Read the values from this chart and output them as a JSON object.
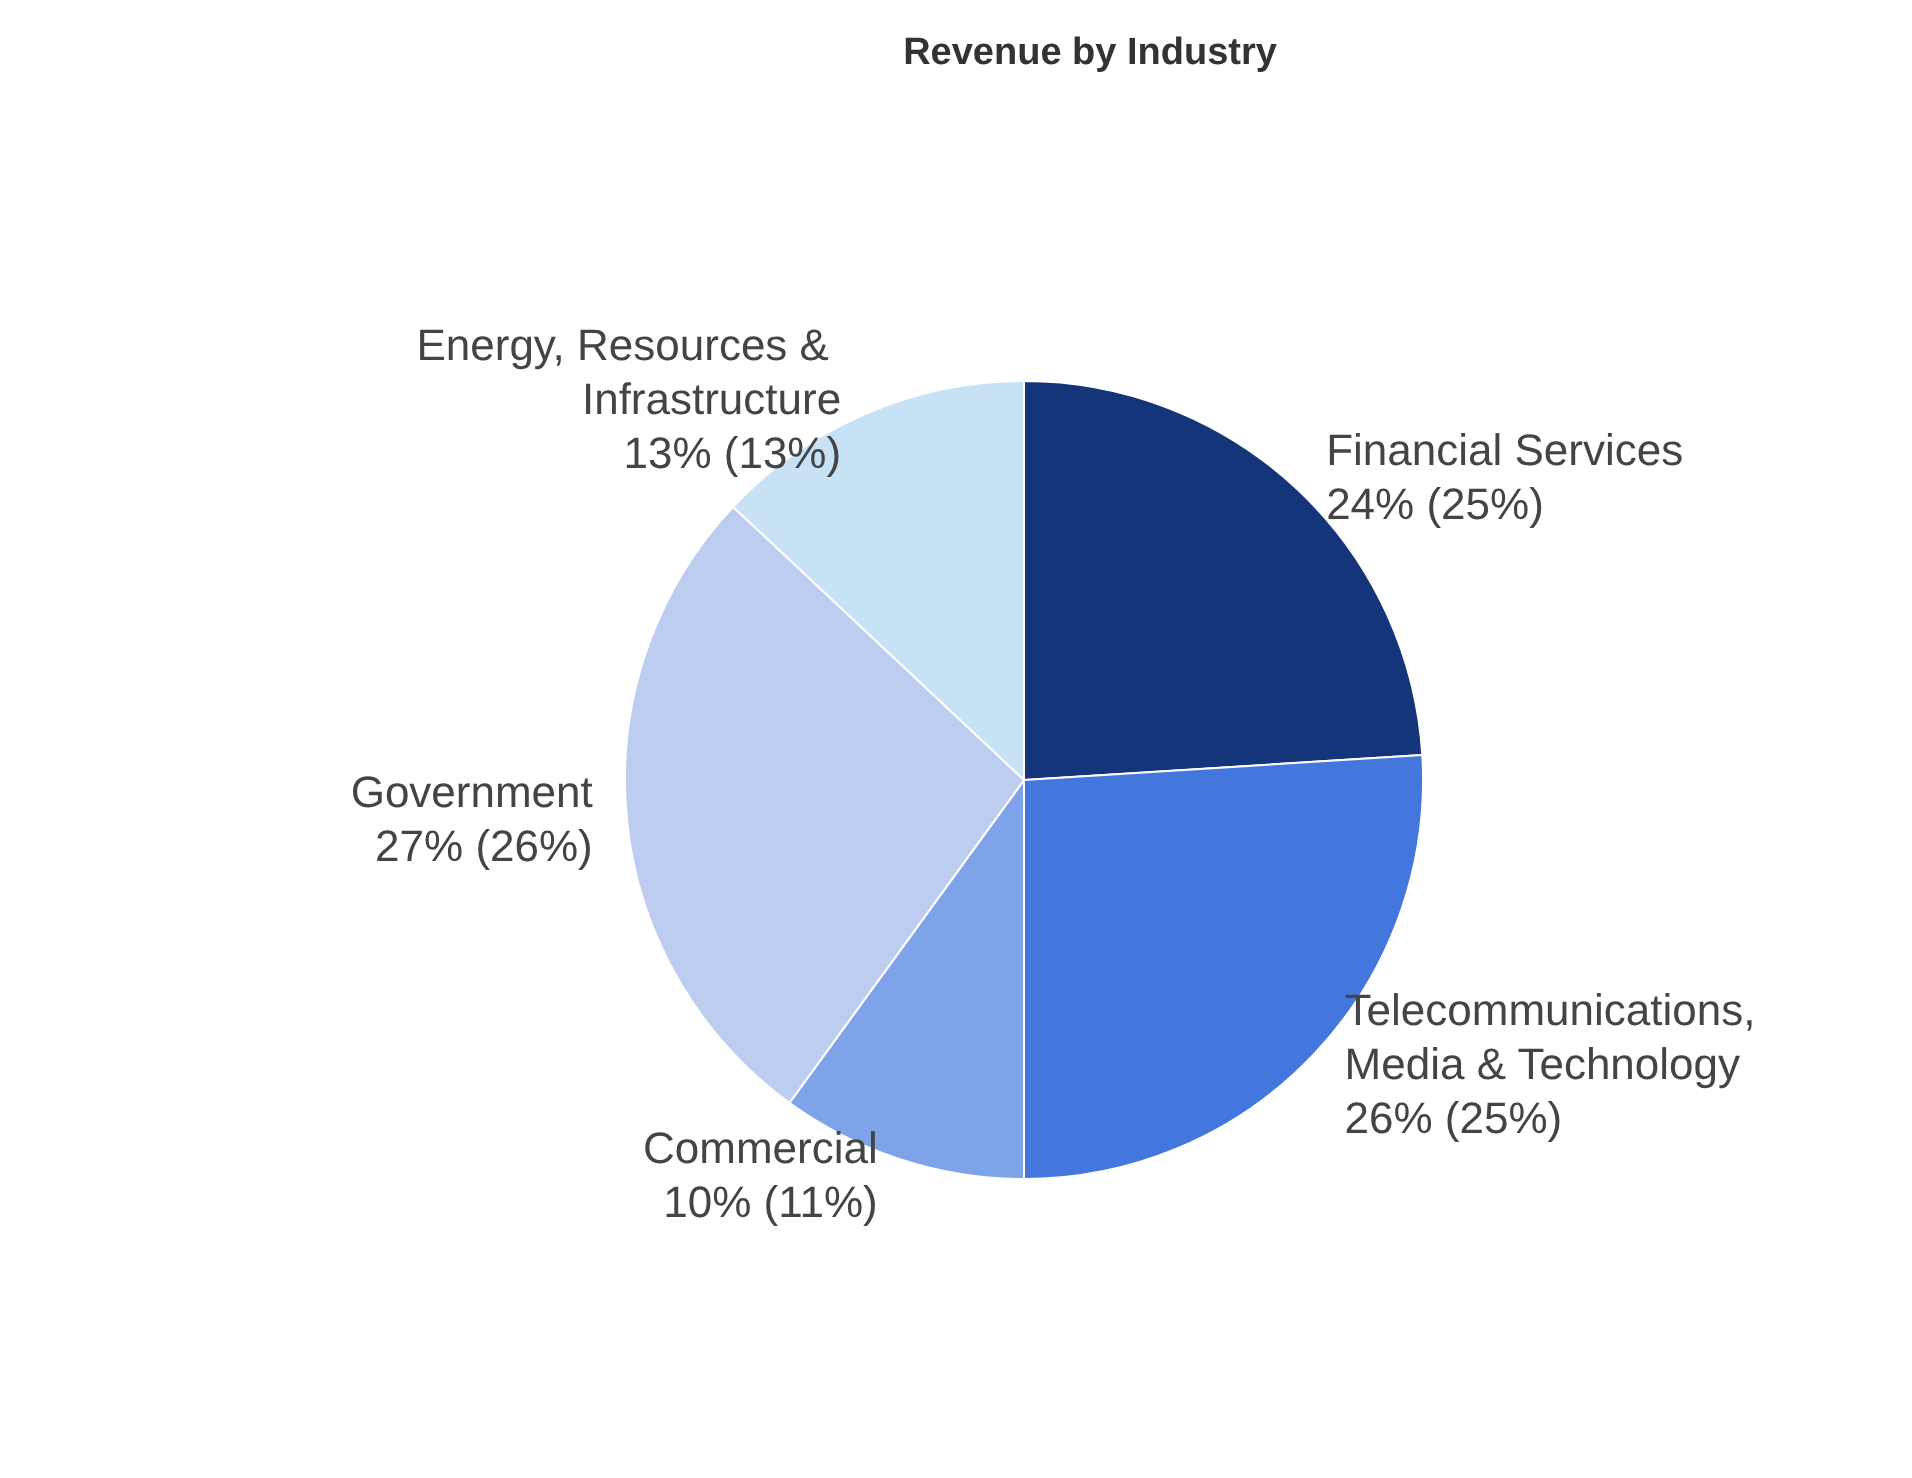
{
  "chart_data": {
    "type": "pie",
    "title": "Revenue by Industry",
    "categories": [
      "Financial Services",
      "Telecommunications, Media & Technology",
      "Commercial",
      "Government",
      "Energy, Resources & Infrastructure"
    ],
    "values": [
      24,
      26,
      10,
      27,
      13
    ],
    "value_labels": [
      "24% (25%)",
      "26% (25%)",
      "10% (11%)",
      "27% (26%)",
      "13% (13%)"
    ],
    "colors": [
      "#14357a",
      "#4477dd",
      "#7fa3e8",
      "#bccdf0",
      "#c8e2f5"
    ],
    "legend": false
  }
}
